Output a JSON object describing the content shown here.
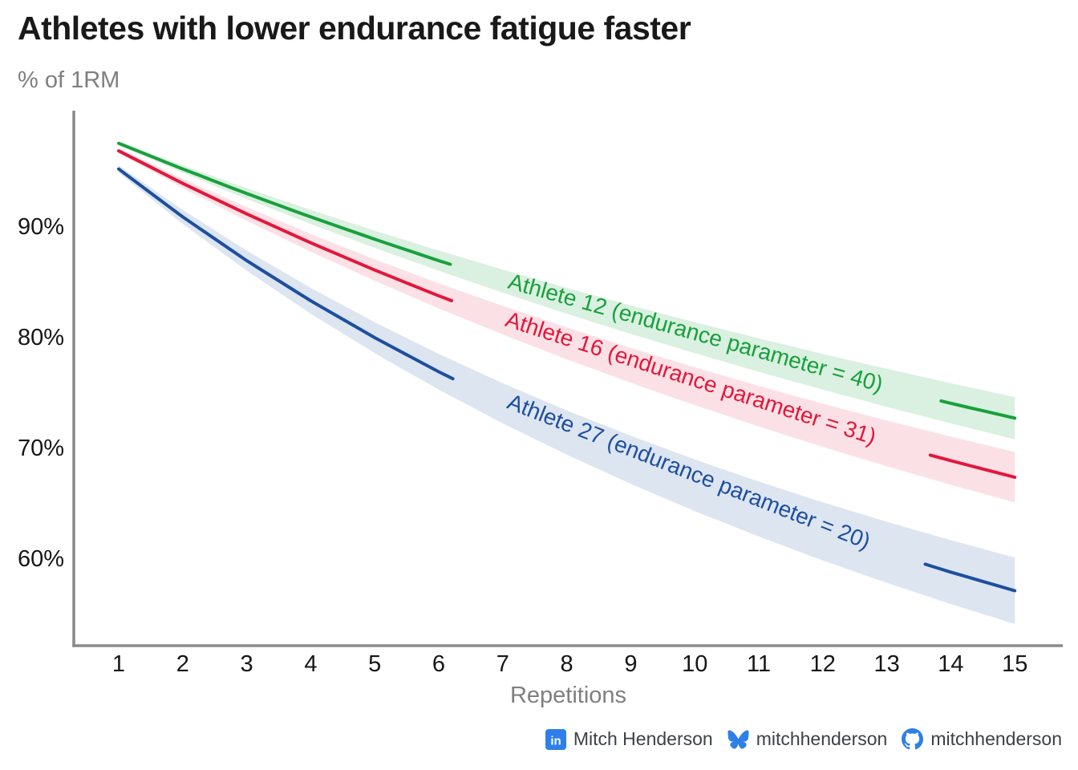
{
  "title": "Athletes with lower endurance fatigue faster",
  "subtitle": "% of 1RM",
  "footer": {
    "linkedin": {
      "icon": "linkedin-icon",
      "text": "Mitch Henderson"
    },
    "bluesky": {
      "icon": "bluesky-icon",
      "text": "mitchhenderson"
    },
    "github": {
      "icon": "github-icon",
      "text": "mitchhenderson"
    }
  },
  "colors": {
    "axis": "#8a8a8a",
    "tick_text": "#161616",
    "muted_text": "#7f7f7f",
    "footer_text": "#3c4147",
    "social_blue": "#2e80e8",
    "green": "#18a03c",
    "red": "#e3173a",
    "blue": "#1d4f9e"
  },
  "chart_data": {
    "type": "line",
    "title": "Athletes with lower endurance fatigue faster",
    "subtitle": "% of 1RM",
    "xlabel": "Repetitions",
    "x": [
      1,
      2,
      3,
      4,
      5,
      6,
      7,
      8,
      9,
      10,
      11,
      12,
      13,
      14,
      15
    ],
    "xtick_labels": [
      "1",
      "2",
      "3",
      "4",
      "5",
      "6",
      "7",
      "8",
      "9",
      "10",
      "11",
      "12",
      "13",
      "14",
      "15"
    ],
    "yticks": [
      {
        "value": 90,
        "label": "90%"
      },
      {
        "value": 80,
        "label": "80%"
      },
      {
        "value": 70,
        "label": "70%"
      },
      {
        "value": 60,
        "label": "60%"
      }
    ],
    "ylim": [
      52,
      100.5
    ],
    "grid": false,
    "legend": "inline-line-labels",
    "band_note": "each line has a shaded confidence ribbon, half-width approx 0.07*(100-value) percentage points",
    "series": [
      {
        "name": "Athlete 12",
        "label": "Athlete 12 (endurance parameter = 40)",
        "endurance_parameter": 40,
        "color": "#18a03c",
        "band_opacity": 0.16,
        "label_gap": [
          6.18,
          13.85
        ],
        "values": [
          97.56,
          95.24,
          93.02,
          90.91,
          88.89,
          86.96,
          85.11,
          83.33,
          81.63,
          80.0,
          78.43,
          76.92,
          75.47,
          74.07,
          72.73
        ]
      },
      {
        "name": "Athlete 16",
        "label": "Athlete 16 (endurance parameter = 31)",
        "endurance_parameter": 31,
        "color": "#e3173a",
        "band_opacity": 0.13,
        "label_gap": [
          6.2,
          13.68
        ],
        "values": [
          96.88,
          93.94,
          91.18,
          88.57,
          86.11,
          83.78,
          81.58,
          79.49,
          77.5,
          75.61,
          73.81,
          72.09,
          70.45,
          68.89,
          67.39
        ]
      },
      {
        "name": "Athlete 27",
        "label": "Athlete 27 (endurance parameter = 20)",
        "endurance_parameter": 20,
        "color": "#1d4f9e",
        "band_opacity": 0.15,
        "label_gap": [
          6.22,
          13.6
        ],
        "values": [
          95.24,
          90.91,
          86.96,
          83.33,
          80.0,
          76.92,
          74.07,
          71.43,
          68.97,
          66.67,
          64.52,
          62.5,
          60.61,
          58.82,
          57.14
        ]
      }
    ]
  }
}
